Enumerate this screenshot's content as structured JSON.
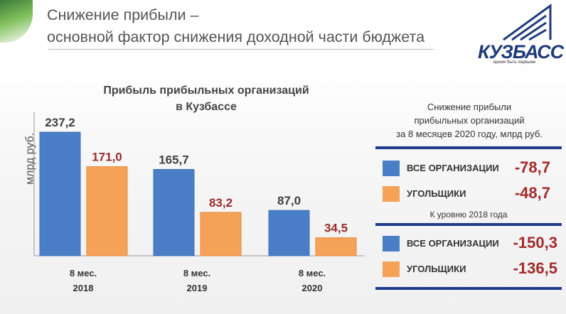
{
  "header": {
    "title_line1": "Снижение прибыли –",
    "title_line2": "основной фактор снижения доходной части бюджета"
  },
  "logo": {
    "name": "КУЗБАСС",
    "tagline": "время быть первыми"
  },
  "chart_data": {
    "type": "bar",
    "title_line1": "Прибыль прибыльных организаций",
    "title_line2": "в Кузбассе",
    "ylabel": "млрд руб.",
    "categories": [
      "8 мес.\n2018",
      "8 мес.\n2019",
      "8 мес.\n2020"
    ],
    "category_line1": [
      "8 мес.",
      "8 мес.",
      "8 мес."
    ],
    "category_line2": [
      "2018",
      "2019",
      "2020"
    ],
    "series": [
      {
        "name": "все организации",
        "color": "#4a7fc8",
        "values": [
          237.2,
          165.7,
          87.0
        ],
        "labels": [
          "237,2",
          "165,7",
          "87,0"
        ],
        "label_color": "#404040"
      },
      {
        "name": "угольщики",
        "color": "#f5a258",
        "values": [
          171.0,
          83.2,
          34.5
        ],
        "labels": [
          "171,0",
          "83,2",
          "34,5"
        ],
        "label_color": "#9b2c2c"
      }
    ],
    "ylim": [
      0,
      240
    ]
  },
  "side": {
    "title_line1": "Снижение прибыли",
    "title_line2": "прибыльных организаций",
    "title_line3": "за 8 месяцев 2020 году, млрд руб.",
    "section1": [
      {
        "label": "ВСЕ ОРГАНИЗАЦИИ",
        "value": "-78,7",
        "color": "#4a7fc8"
      },
      {
        "label": "УГОЛЬЩИКИ",
        "value": "-48,7",
        "color": "#f5a258"
      }
    ],
    "subtitle": "К уровню 2018 года",
    "section2": [
      {
        "label": "ВСЕ ОРГАНИЗАЦИИ",
        "value": "-150,3",
        "color": "#4a7fc8"
      },
      {
        "label": "УГОЛЬЩИКИ",
        "value": "-136,5",
        "color": "#f5a258"
      }
    ]
  }
}
